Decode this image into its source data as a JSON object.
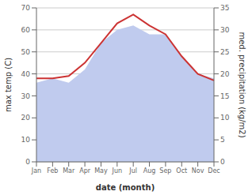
{
  "chart_data": {
    "type": "line",
    "categories": [
      "Jan",
      "Feb",
      "Mar",
      "Apr",
      "May",
      "Jun",
      "Jul",
      "Aug",
      "Sep",
      "Oct",
      "Nov",
      "Dec"
    ],
    "xlabel": "date (month)",
    "ylabel": "max temp (C)",
    "y2label": "med. precipitation (kg/m2)",
    "series": [
      {
        "type": "area",
        "axis": "y2",
        "color": "#c0cbee",
        "values": [
          18,
          19,
          18,
          21,
          27,
          30,
          31,
          29,
          29,
          24,
          20,
          19
        ]
      },
      {
        "type": "line",
        "color": "#cc3333",
        "values": [
          38,
          38,
          39,
          45,
          54,
          63,
          67,
          62,
          58,
          48,
          40,
          37
        ]
      }
    ],
    "ylim": [
      0,
      70
    ],
    "yticks": [
      0,
      10,
      20,
      30,
      40,
      50,
      60,
      70
    ],
    "y2lim": [
      0,
      35
    ],
    "y2ticks": [
      0,
      5,
      10,
      15,
      20,
      25,
      30,
      35
    ],
    "grid": true
  }
}
